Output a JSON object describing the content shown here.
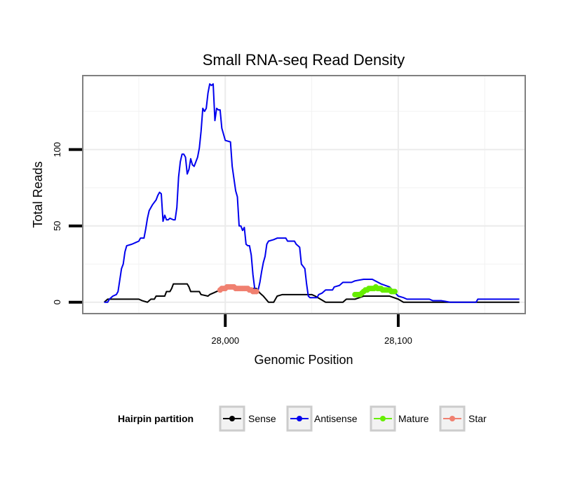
{
  "chart_data": {
    "type": "line",
    "title": "Small RNA-seq Read Density",
    "xlabel": "Genomic Position",
    "ylabel": "Total Reads",
    "xlim": [
      27918,
      28173
    ],
    "ylim": [
      -7,
      148
    ],
    "x_ticks": [
      28000,
      28100
    ],
    "x_tick_labels": [
      "28,000",
      "28,100"
    ],
    "y_ticks": [
      0,
      50,
      100
    ],
    "y_tick_labels": [
      "0",
      "50",
      "100"
    ],
    "grid": true,
    "legend": {
      "title": "Hairpin partition",
      "position": "bottom",
      "entries": [
        "Sense",
        "Antisense",
        "Mature",
        "Star"
      ]
    },
    "series": [
      {
        "name": "Sense",
        "color": "#000000",
        "style": "line",
        "points": [
          [
            27930,
            0
          ],
          [
            27932,
            2
          ],
          [
            27935,
            2
          ],
          [
            27950,
            2
          ],
          [
            27952,
            1
          ],
          [
            27955,
            0
          ],
          [
            27957,
            2
          ],
          [
            27959,
            2
          ],
          [
            27960,
            4
          ],
          [
            27965,
            4
          ],
          [
            27966,
            7
          ],
          [
            27968,
            7
          ],
          [
            27969,
            9
          ],
          [
            27970,
            12
          ],
          [
            27978,
            12
          ],
          [
            27979,
            10
          ],
          [
            27980,
            7
          ],
          [
            27985,
            7
          ],
          [
            27986,
            5
          ],
          [
            27990,
            4
          ],
          [
            27991,
            5
          ],
          [
            27993,
            6
          ],
          [
            27995,
            7
          ],
          [
            28000,
            9
          ],
          [
            28018,
            9
          ],
          [
            28020,
            6
          ],
          [
            28022,
            4
          ],
          [
            28025,
            0
          ],
          [
            28028,
            0
          ],
          [
            28030,
            4
          ],
          [
            28033,
            5
          ],
          [
            28050,
            5
          ],
          [
            28052,
            4
          ],
          [
            28055,
            2
          ],
          [
            28058,
            0
          ],
          [
            28068,
            0
          ],
          [
            28070,
            2
          ],
          [
            28075,
            2
          ],
          [
            28080,
            4
          ],
          [
            28095,
            4
          ],
          [
            28100,
            2
          ],
          [
            28103,
            0
          ],
          [
            28120,
            0
          ],
          [
            28145,
            0
          ],
          [
            28170,
            0
          ]
        ]
      },
      {
        "name": "Antisense",
        "color": "#0000ee",
        "style": "line",
        "points": [
          [
            27930,
            0
          ],
          [
            27932,
            0
          ],
          [
            27933,
            2
          ],
          [
            27935,
            4
          ],
          [
            27937,
            5
          ],
          [
            27938,
            7
          ],
          [
            27940,
            22
          ],
          [
            27941,
            25
          ],
          [
            27942,
            33
          ],
          [
            27943,
            37
          ],
          [
            27946,
            38
          ],
          [
            27948,
            39
          ],
          [
            27950,
            40
          ],
          [
            27951,
            42
          ],
          [
            27953,
            42
          ],
          [
            27954,
            48
          ],
          [
            27955,
            55
          ],
          [
            27956,
            60
          ],
          [
            27957,
            62
          ],
          [
            27958,
            64
          ],
          [
            27960,
            67
          ],
          [
            27961,
            70
          ],
          [
            27962,
            72
          ],
          [
            27963,
            71
          ],
          [
            27964,
            53
          ],
          [
            27965,
            57
          ],
          [
            27966,
            54
          ],
          [
            27967,
            54
          ],
          [
            27968,
            55
          ],
          [
            27970,
            54
          ],
          [
            27971,
            54
          ],
          [
            27972,
            62
          ],
          [
            27973,
            82
          ],
          [
            27974,
            92
          ],
          [
            27975,
            97
          ],
          [
            27976,
            97
          ],
          [
            27977,
            95
          ],
          [
            27978,
            84
          ],
          [
            27979,
            87
          ],
          [
            27980,
            94
          ],
          [
            27981,
            90
          ],
          [
            27982,
            89
          ],
          [
            27983,
            92
          ],
          [
            27984,
            95
          ],
          [
            27985,
            101
          ],
          [
            27986,
            112
          ],
          [
            27987,
            127
          ],
          [
            27988,
            125
          ],
          [
            27989,
            127
          ],
          [
            27990,
            137
          ],
          [
            27991,
            143
          ],
          [
            27992,
            142
          ],
          [
            27993,
            143
          ],
          [
            27994,
            119
          ],
          [
            27995,
            127
          ],
          [
            27996,
            126
          ],
          [
            27997,
            126
          ],
          [
            27998,
            114
          ],
          [
            27999,
            110
          ],
          [
            28000,
            106
          ],
          [
            28003,
            105
          ],
          [
            28004,
            89
          ],
          [
            28005,
            81
          ],
          [
            28006,
            73
          ],
          [
            28007,
            69
          ],
          [
            28008,
            50
          ],
          [
            28009,
            50
          ],
          [
            28010,
            47
          ],
          [
            28011,
            49
          ],
          [
            28012,
            38
          ],
          [
            28013,
            37
          ],
          [
            28014,
            37
          ],
          [
            28015,
            31
          ],
          [
            28016,
            18
          ],
          [
            28017,
            9
          ],
          [
            28018,
            7
          ],
          [
            28019,
            8
          ],
          [
            28020,
            13
          ],
          [
            28021,
            20
          ],
          [
            28022,
            26
          ],
          [
            28023,
            30
          ],
          [
            28024,
            38
          ],
          [
            28025,
            40
          ],
          [
            28028,
            41
          ],
          [
            28030,
            42
          ],
          [
            28035,
            42
          ],
          [
            28036,
            40
          ],
          [
            28040,
            40
          ],
          [
            28041,
            38
          ],
          [
            28042,
            37
          ],
          [
            28043,
            36
          ],
          [
            28044,
            25
          ],
          [
            28046,
            22
          ],
          [
            28047,
            12
          ],
          [
            28048,
            4
          ],
          [
            28049,
            3
          ],
          [
            28053,
            3
          ],
          [
            28054,
            5
          ],
          [
            28056,
            6
          ],
          [
            28058,
            8
          ],
          [
            28062,
            8
          ],
          [
            28063,
            10
          ],
          [
            28066,
            11
          ],
          [
            28068,
            13
          ],
          [
            28073,
            13
          ],
          [
            28075,
            14
          ],
          [
            28080,
            15
          ],
          [
            28085,
            15
          ],
          [
            28090,
            12
          ],
          [
            28095,
            10
          ],
          [
            28100,
            4
          ],
          [
            28103,
            3
          ],
          [
            28105,
            2
          ],
          [
            28118,
            2
          ],
          [
            28120,
            1
          ],
          [
            28125,
            1
          ],
          [
            28130,
            0
          ],
          [
            28145,
            0
          ],
          [
            28146,
            2
          ],
          [
            28160,
            2
          ],
          [
            28165,
            2
          ],
          [
            28170,
            2
          ]
        ]
      },
      {
        "name": "Mature",
        "color": "#66ee00",
        "style": "points",
        "points": [
          [
            28075,
            5
          ],
          [
            28076,
            5
          ],
          [
            28077,
            5
          ],
          [
            28078,
            5
          ],
          [
            28079,
            6
          ],
          [
            28080,
            7
          ],
          [
            28081,
            8
          ],
          [
            28082,
            8
          ],
          [
            28083,
            9
          ],
          [
            28084,
            9
          ],
          [
            28085,
            9
          ],
          [
            28086,
            9
          ],
          [
            28087,
            10
          ],
          [
            28088,
            9
          ],
          [
            28089,
            9
          ],
          [
            28090,
            9
          ],
          [
            28091,
            8
          ],
          [
            28092,
            8
          ],
          [
            28093,
            8
          ],
          [
            28094,
            8
          ],
          [
            28095,
            8
          ],
          [
            28096,
            7
          ],
          [
            28097,
            7
          ],
          [
            28098,
            7
          ]
        ]
      },
      {
        "name": "Star",
        "color": "#f08070",
        "style": "points",
        "points": [
          [
            27997,
            8
          ],
          [
            27998,
            9
          ],
          [
            27999,
            9
          ],
          [
            28000,
            9
          ],
          [
            28001,
            10
          ],
          [
            28002,
            10
          ],
          [
            28003,
            10
          ],
          [
            28004,
            10
          ],
          [
            28005,
            10
          ],
          [
            28006,
            9
          ],
          [
            28007,
            9
          ],
          [
            28008,
            9
          ],
          [
            28009,
            9
          ],
          [
            28010,
            9
          ],
          [
            28011,
            9
          ],
          [
            28012,
            9
          ],
          [
            28013,
            9
          ],
          [
            28014,
            8
          ],
          [
            28015,
            8
          ],
          [
            28016,
            7
          ],
          [
            28017,
            7
          ],
          [
            28018,
            7
          ]
        ]
      }
    ]
  }
}
